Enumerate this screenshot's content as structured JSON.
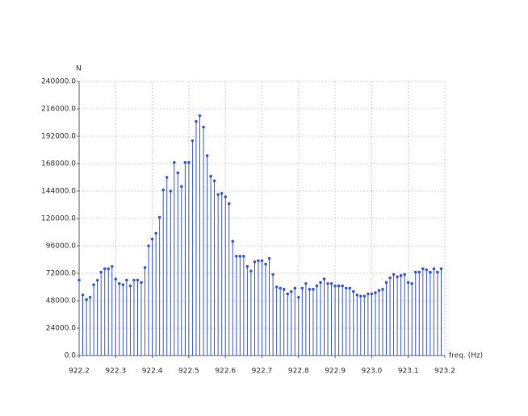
{
  "chart_data": {
    "type": "stem",
    "ylabel": "N",
    "xlabel": "freq. (Hz)",
    "color": "#3b5bdb",
    "x": [
      922.2,
      922.21,
      922.22,
      922.23,
      922.24,
      922.25,
      922.26,
      922.27,
      922.28,
      922.29,
      922.3,
      922.31,
      922.32,
      922.33,
      922.34,
      922.35,
      922.36,
      922.37,
      922.38,
      922.39,
      922.4,
      922.41,
      922.42,
      922.43,
      922.44,
      922.45,
      922.46,
      922.47,
      922.48,
      922.49,
      922.5,
      922.51,
      922.52,
      922.53,
      922.54,
      922.55,
      922.56,
      922.57,
      922.58,
      922.59,
      922.6,
      922.61,
      922.62,
      922.63,
      922.64,
      922.65,
      922.66,
      922.67,
      922.68,
      922.69,
      922.7,
      922.71,
      922.72,
      922.73,
      922.74,
      922.75,
      922.76,
      922.77,
      922.78,
      922.79,
      922.8,
      922.81,
      922.82,
      922.83,
      922.84,
      922.85,
      922.86,
      922.87,
      922.88,
      922.89,
      922.9,
      922.91,
      922.92,
      922.93,
      922.94,
      922.95,
      922.96,
      922.97,
      922.98,
      922.99,
      923.0,
      923.01,
      923.02,
      923.03,
      923.04,
      923.05,
      923.06,
      923.07,
      923.08,
      923.09,
      923.1,
      923.11,
      923.12,
      923.13,
      923.14,
      923.15,
      923.16,
      923.17,
      923.18,
      923.19
    ],
    "values": [
      66000,
      53000,
      49000,
      51000,
      62000,
      66000,
      73000,
      76000,
      76000,
      78000,
      67000,
      63000,
      62000,
      66000,
      61000,
      66000,
      66000,
      64000,
      77000,
      96000,
      102000,
      107000,
      121000,
      145000,
      156000,
      144000,
      169000,
      160000,
      148000,
      169000,
      169000,
      188000,
      205000,
      210000,
      200000,
      175000,
      157000,
      153000,
      141000,
      142000,
      139000,
      133000,
      100000,
      87000,
      87000,
      87000,
      78000,
      74000,
      82000,
      83000,
      83000,
      80000,
      85000,
      71000,
      60000,
      59000,
      58000,
      54000,
      56000,
      59000,
      51000,
      59000,
      63000,
      58000,
      58000,
      61000,
      64000,
      67000,
      63000,
      63000,
      61000,
      61000,
      61000,
      59000,
      59000,
      56000,
      53000,
      52000,
      52000,
      54000,
      54000,
      55000,
      57000,
      58000,
      64000,
      68000,
      71000,
      69000,
      70000,
      71000,
      64000,
      63000,
      73000,
      73000,
      76000,
      75000,
      73000,
      76000,
      73000,
      76000
    ],
    "xlim": [
      922.2,
      923.2
    ],
    "ylim": [
      0,
      240000
    ],
    "xticks": [
      922.2,
      922.3,
      922.4,
      922.5,
      922.6,
      922.7,
      922.8,
      922.9,
      {
        "value": 923.0,
        "label": "923.0"
      },
      923.1,
      923.2
    ],
    "yticks": [
      {
        "value": 0,
        "label": "0.0"
      },
      {
        "value": 24000,
        "label": "24000.0"
      },
      {
        "value": 48000,
        "label": "48000.0"
      },
      {
        "value": 72000,
        "label": "72000.0"
      },
      {
        "value": 96000,
        "label": "96000.0"
      },
      {
        "value": 120000,
        "label": "120000.0"
      },
      {
        "value": 144000,
        "label": "144000.0"
      },
      {
        "value": 168000,
        "label": "168000.0"
      },
      {
        "value": 192000,
        "label": "192000.0"
      },
      {
        "value": 216000,
        "label": "216000.0"
      },
      {
        "value": 240000,
        "label": "240000.0"
      }
    ],
    "grid": true
  }
}
